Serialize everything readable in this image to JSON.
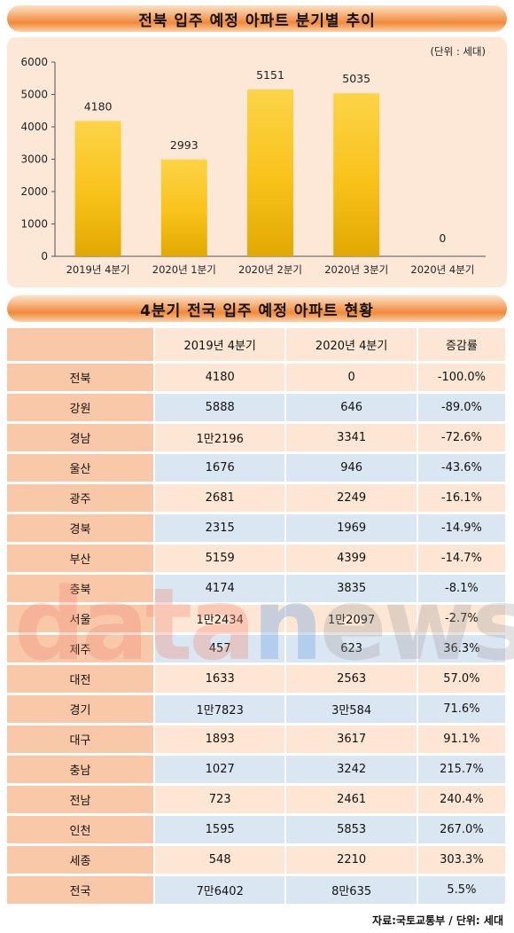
{
  "chart": {
    "title": "전북 입주 예정 아파트 분기별 추이",
    "unit_note": "(단위 : 세대)"
  },
  "chart_data": {
    "type": "bar",
    "categories": [
      "2019년 4분기",
      "2020년 1분기",
      "2020년 2분기",
      "2020년 3분기",
      "2020년 4분기"
    ],
    "values": [
      4180,
      2993,
      5151,
      5035,
      0
    ],
    "yticks": [
      0,
      1000,
      2000,
      3000,
      4000,
      5000,
      6000
    ],
    "ylim": [
      0,
      6000
    ],
    "bar_color": "#f9c21a",
    "grid": false
  },
  "table": {
    "title": "4분기 전국 입주 예정 아파트 현황",
    "headers": [
      "",
      "2019년 4분기",
      "2020년 4분기",
      "증감률"
    ],
    "rows": [
      [
        "전북",
        "4180",
        "0",
        "-100.0%"
      ],
      [
        "강원",
        "5888",
        "646",
        "-89.0%"
      ],
      [
        "경남",
        "1만2196",
        "3341",
        "-72.6%"
      ],
      [
        "울산",
        "1676",
        "946",
        "-43.6%"
      ],
      [
        "광주",
        "2681",
        "2249",
        "-16.1%"
      ],
      [
        "경북",
        "2315",
        "1969",
        "-14.9%"
      ],
      [
        "부산",
        "5159",
        "4399",
        "-14.7%"
      ],
      [
        "충북",
        "4174",
        "3835",
        "-8.1%"
      ],
      [
        "서울",
        "1만2434",
        "1만2097",
        "-2.7%"
      ],
      [
        "제주",
        "457",
        "623",
        "36.3%"
      ],
      [
        "대전",
        "1633",
        "2563",
        "57.0%"
      ],
      [
        "경기",
        "1만7823",
        "3만584",
        "71.6%"
      ],
      [
        "대구",
        "1893",
        "3617",
        "91.1%"
      ],
      [
        "충남",
        "1027",
        "3242",
        "215.7%"
      ],
      [
        "전남",
        "723",
        "2461",
        "240.4%"
      ],
      [
        "인천",
        "1595",
        "5853",
        "267.0%"
      ],
      [
        "세종",
        "548",
        "2210",
        "303.3%"
      ],
      [
        "전국",
        "7만6402",
        "8만635",
        "5.5%"
      ]
    ]
  },
  "watermark": {
    "part1": "data",
    "part2": "n",
    "part3": "ews"
  },
  "footer": "자료:국토교통부 / 단위: 세대"
}
